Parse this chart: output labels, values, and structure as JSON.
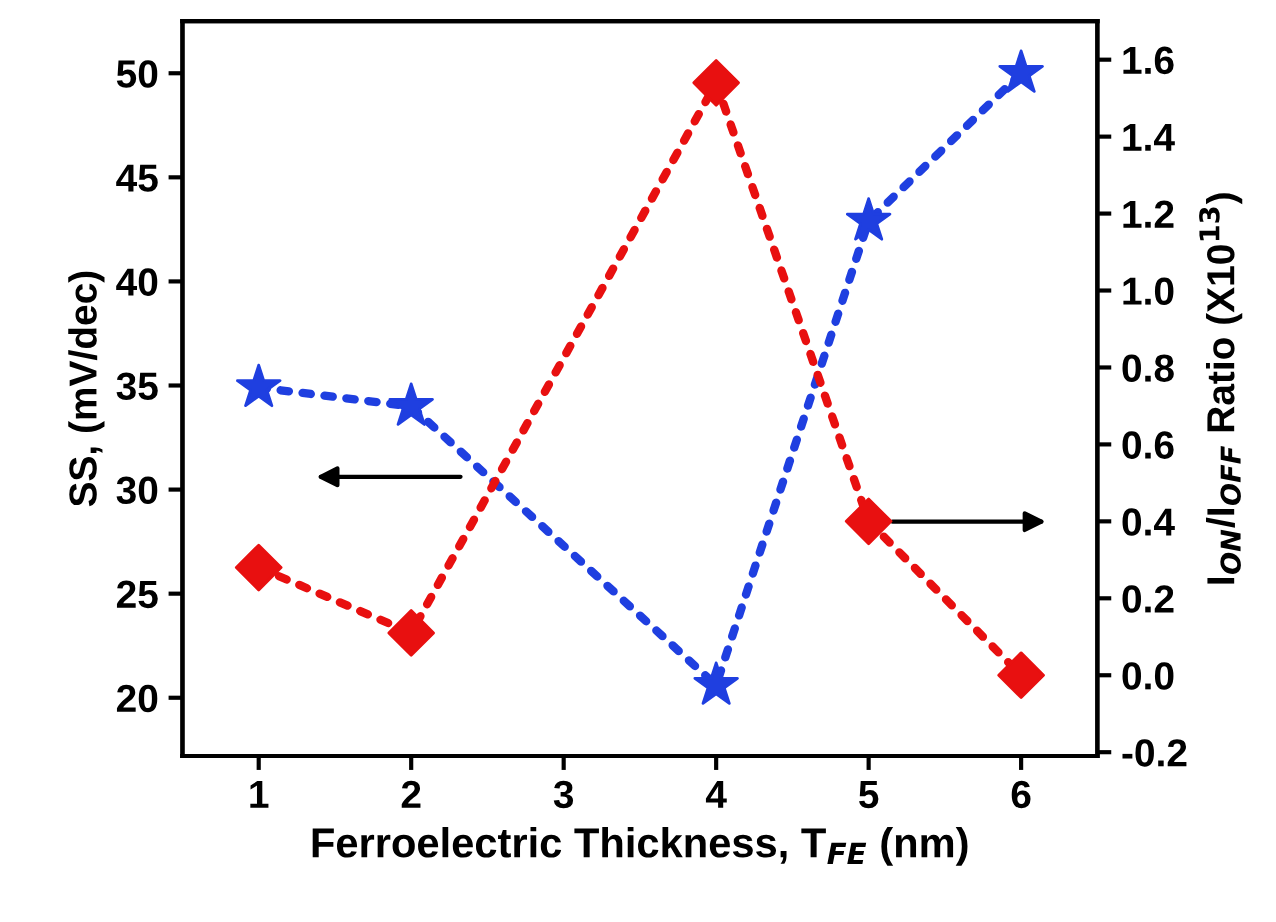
{
  "chart_data": {
    "type": "line",
    "xlabel": "Ferroelectric Thickness, T$_{FE}$ (nm)",
    "ylabel": "SS, (mV/dec)",
    "y2label": "I$_{ON}$/I$_{OFF}$ Ratio (X10$^{13}$)",
    "x": [
      1,
      2,
      4,
      5,
      6
    ],
    "series": [
      {
        "color": "#1f3fe0",
        "values": [
          34.9,
          34.0,
          20.6,
          42.9,
          50.0
        ],
        "marker": "star"
      },
      {
        "color": "#e81010",
        "values": [
          0.28,
          0.11,
          1.54,
          0.4,
          0.0
        ],
        "axis": "y2",
        "marker": "diamond"
      }
    ],
    "line_style": "dotted",
    "xlim": [
      0.5,
      6.5
    ],
    "xticks": [
      1,
      2,
      3,
      4,
      5,
      6
    ],
    "ylim": [
      17.2,
      52.5
    ],
    "yticks": [
      20,
      25,
      30,
      35,
      40,
      45,
      50
    ],
    "y2lim": [
      -0.21,
      1.7
    ],
    "y2ticks": [
      {
        "value": -0.2,
        "label": "-0.2"
      },
      {
        "value": 0,
        "label": "0.0"
      },
      {
        "value": 0.2,
        "label": "0.2"
      },
      {
        "value": 0.4,
        "label": "0.4"
      },
      {
        "value": 0.6,
        "label": "0.6"
      },
      {
        "value": 0.8,
        "label": "0.8"
      },
      {
        "value": 1.0,
        "label": "1.0"
      },
      {
        "value": 1.2,
        "label": "1.2"
      },
      {
        "value": 1.4,
        "label": "1.4"
      },
      {
        "value": 1.6,
        "label": "1.6"
      }
    ]
  }
}
